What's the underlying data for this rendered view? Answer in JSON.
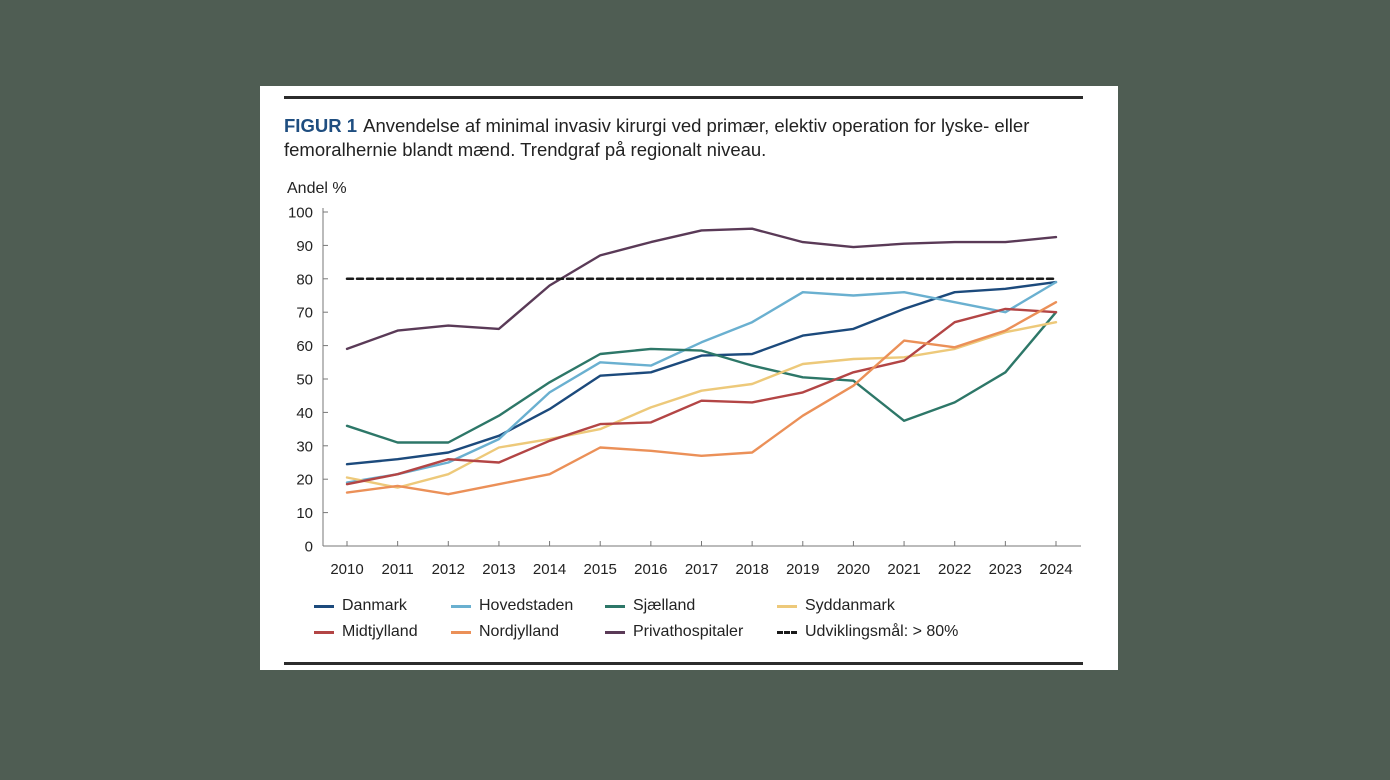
{
  "figure": {
    "label": "FIGUR 1",
    "caption": "Anvendelse af minimal invasiv kirurgi ved primær, elektiv operation for lyske- eller femoralhernie blandt mænd. Trendgraf på regionalt niveau."
  },
  "chart_data": {
    "type": "line",
    "title": "",
    "xlabel": "",
    "ylabel": "Andel %",
    "ylim": [
      0,
      100
    ],
    "yticks": [
      "0",
      "10",
      "20",
      "30",
      "40",
      "50",
      "60",
      "70",
      "80",
      "90",
      "100"
    ],
    "categories": [
      "2010",
      "2011",
      "2012",
      "2013",
      "2014",
      "2015",
      "2016",
      "2017",
      "2018",
      "2019",
      "2020",
      "2021",
      "2022",
      "2023",
      "2024"
    ],
    "grid": false,
    "legend_position": "bottom",
    "series": [
      {
        "name": "Danmark",
        "color": "#1c4a7c",
        "values": [
          24.5,
          26,
          28,
          33,
          41,
          51,
          52,
          57,
          57.5,
          63,
          65,
          71,
          76,
          77,
          79
        ]
      },
      {
        "name": "Hovedstaden",
        "color": "#6ab0d0",
        "values": [
          19,
          21.5,
          25,
          32,
          46,
          55,
          54,
          61,
          67,
          76,
          75,
          76,
          73,
          70,
          79
        ]
      },
      {
        "name": "Sjælland",
        "color": "#2d7768",
        "values": [
          36,
          31,
          31,
          39,
          49,
          57.5,
          59,
          58.5,
          54,
          50.5,
          49.5,
          37.5,
          43,
          52,
          70
        ]
      },
      {
        "name": "Syddanmark",
        "color": "#edc97a",
        "values": [
          20.5,
          17.5,
          21.5,
          29.5,
          32,
          35,
          41.5,
          46.5,
          48.5,
          54.5,
          56,
          56.5,
          59,
          64,
          67
        ]
      },
      {
        "name": "Midtjylland",
        "color": "#b34545",
        "values": [
          18.5,
          21.5,
          26,
          25,
          31.5,
          36.5,
          37,
          43.5,
          43,
          46,
          52,
          55.5,
          67,
          71,
          70
        ]
      },
      {
        "name": "Nordjylland",
        "color": "#eb9058",
        "values": [
          16,
          18,
          15.5,
          18.5,
          21.5,
          29.5,
          28.5,
          27,
          28,
          39,
          48,
          61.5,
          59.5,
          64.5,
          73
        ]
      },
      {
        "name": "Privathospitaler",
        "color": "#5a3a57",
        "values": [
          59,
          64.5,
          66,
          65,
          78,
          87,
          91,
          94.5,
          95,
          91,
          89.5,
          90.5,
          91,
          91,
          92.5
        ]
      },
      {
        "name": "Udviklingsmål: > 80%",
        "color": "#1a1a1a",
        "dashed": true,
        "values": [
          80,
          80,
          80,
          80,
          80,
          80,
          80,
          80,
          80,
          80,
          80,
          80,
          80,
          80,
          80
        ]
      }
    ]
  }
}
